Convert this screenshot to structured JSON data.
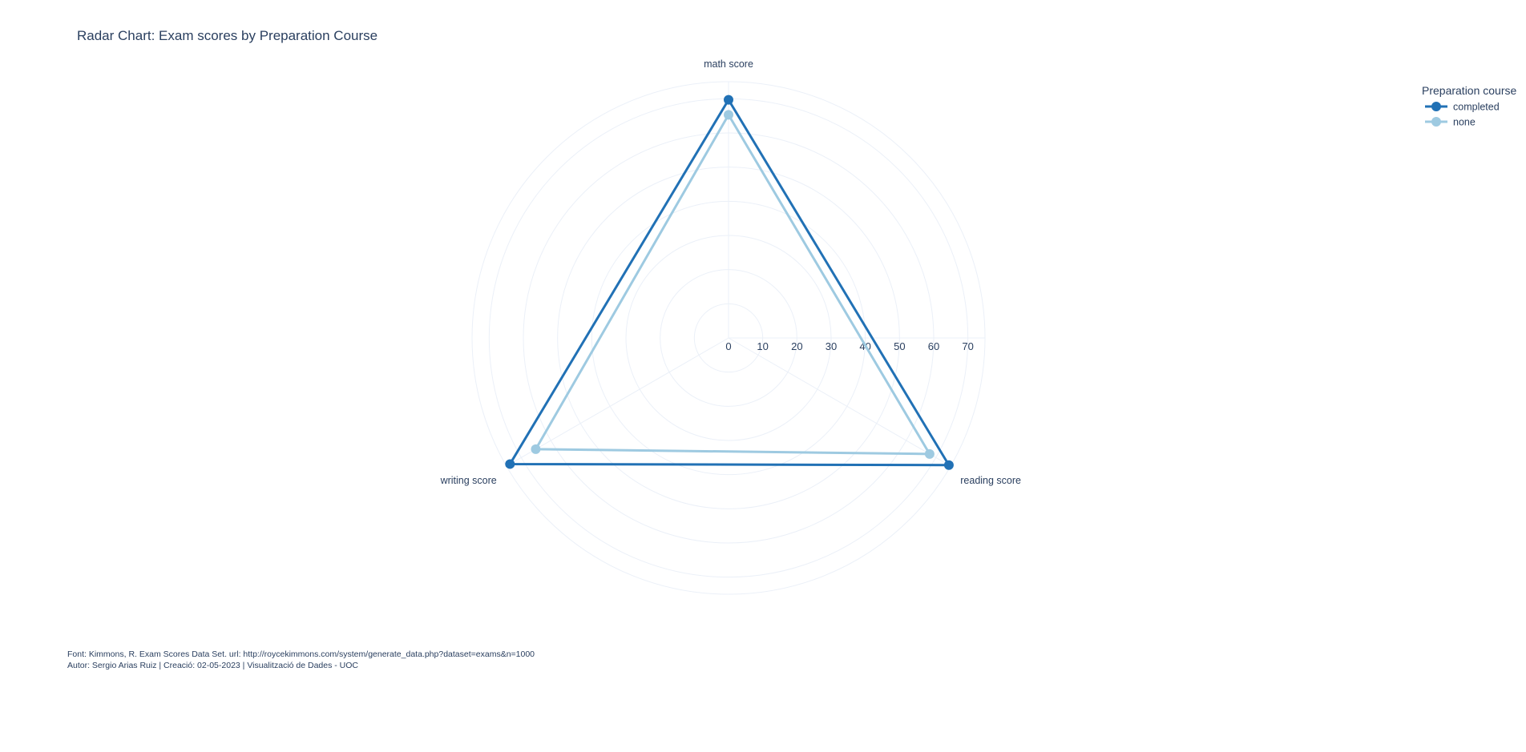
{
  "chart_data": {
    "type": "radar",
    "title": "Radar Chart: Exam scores by Preparation Course",
    "axes": [
      "math score",
      "reading score",
      "writing score"
    ],
    "radial_range": [
      0,
      75
    ],
    "radial_ticks": [
      0,
      10,
      20,
      30,
      40,
      50,
      60,
      70
    ],
    "legend": {
      "title": "Preparation course",
      "placement": "top-right"
    },
    "series": [
      {
        "name": "completed",
        "values": [
          69.7,
          74.4,
          73.8
        ],
        "color": "#2171b5"
      },
      {
        "name": "none",
        "values": [
          65.3,
          67.9,
          65.1
        ],
        "color": "#9ecae1"
      }
    ],
    "footnote": [
      "Font: Kimmons, R.  Exam Scores Data Set. url: http://roycekimmons.com/system/generate_data.php?dataset=exams&n=1000",
      "Autor: Sergio Arias Ruiz | Creació: 02-05-2023 | Visualització de Dades - UOC"
    ]
  }
}
